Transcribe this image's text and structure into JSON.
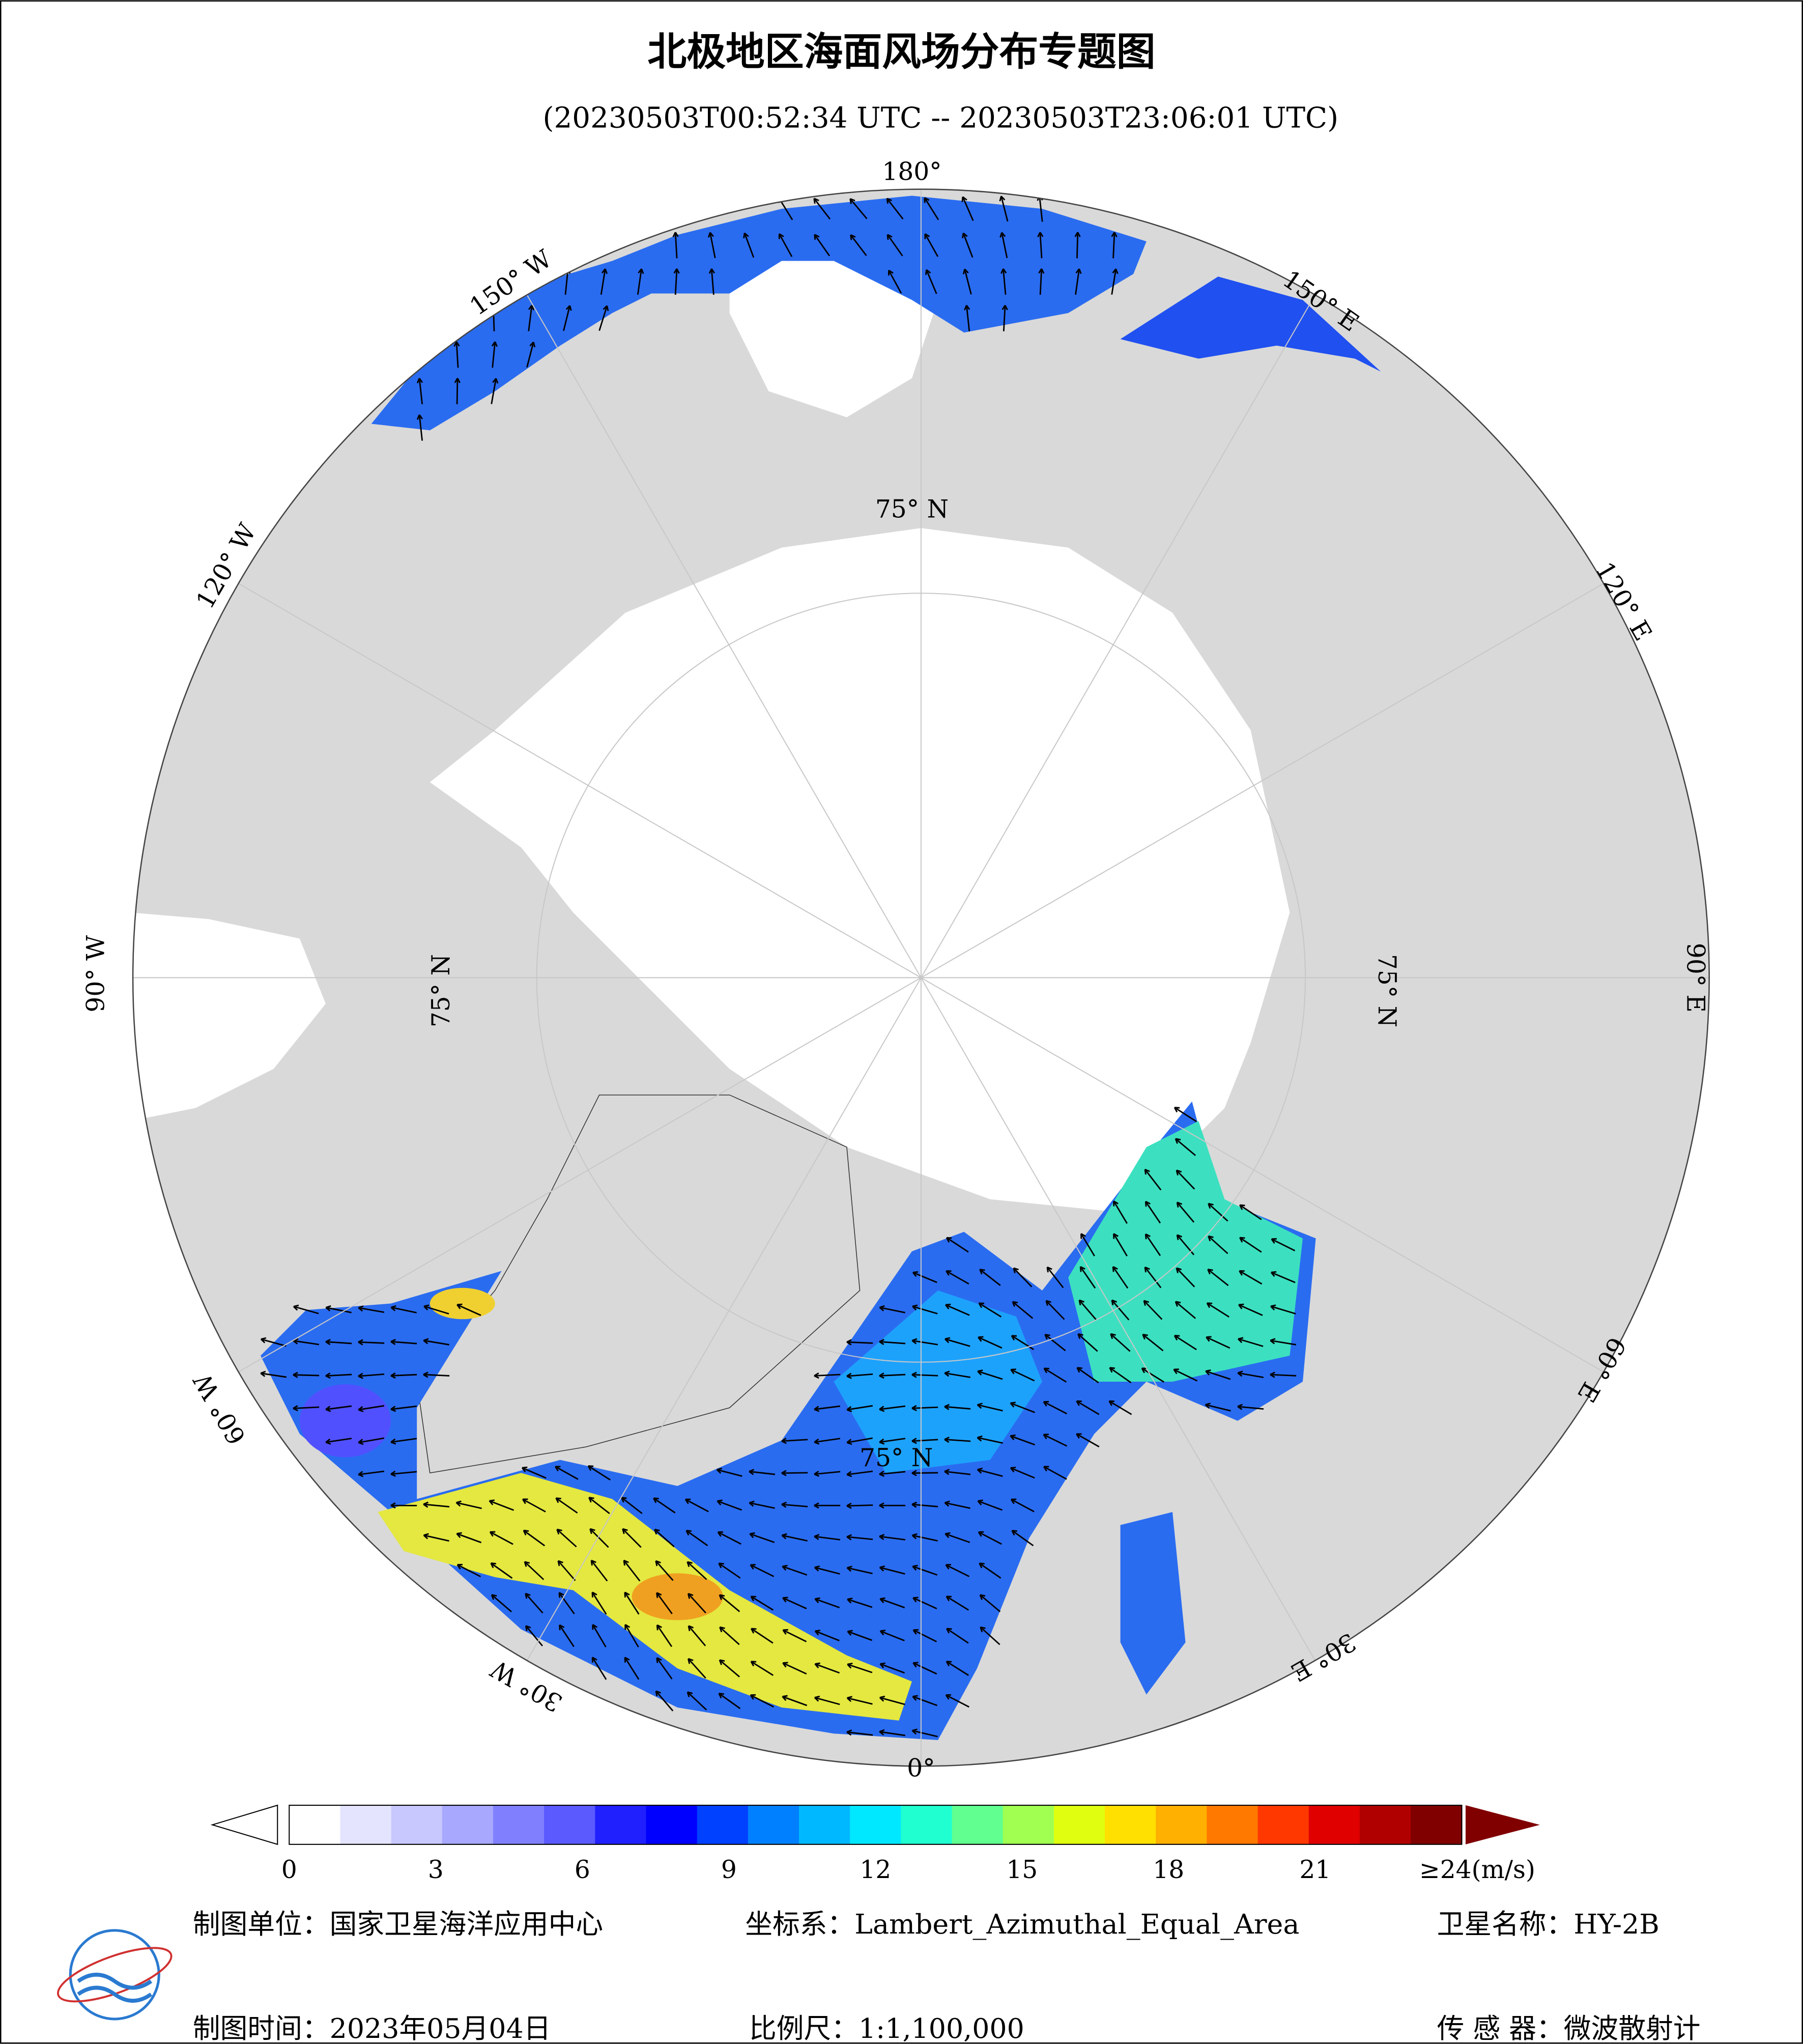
{
  "header": {
    "title": "北极地区海面风场分布专题图",
    "subtitle": "(20230503T00:52:34 UTC -- 20230503T23:06:01 UTC)"
  },
  "map": {
    "lon_labels": [
      "180°",
      "150° W",
      "150° E",
      "120° W",
      "120° E",
      "90° W",
      "90° E",
      "60° W",
      "60° E",
      "30° W",
      "30° E",
      "0°"
    ],
    "lat_labels": [
      "75° N",
      "75° N",
      "75° N",
      "75° N"
    ]
  },
  "colorbar": {
    "range": [
      0,
      24
    ],
    "ticks": [
      0,
      3,
      6,
      9,
      12,
      15,
      18,
      21
    ],
    "max_label": "≥24(m/s)",
    "colors": [
      "#ffffff",
      "#e4e4ff",
      "#c8c8ff",
      "#a8a8ff",
      "#8080ff",
      "#5a5aff",
      "#2020ff",
      "#0000ff",
      "#0040ff",
      "#0080ff",
      "#00b8ff",
      "#00e8ff",
      "#20ffd0",
      "#60ff90",
      "#a0ff50",
      "#e0ff10",
      "#ffe000",
      "#ffb000",
      "#ff7800",
      "#ff3800",
      "#e00000",
      "#b00000",
      "#800000"
    ]
  },
  "footer": {
    "unit": "制图单位：国家卫星海洋应用中心",
    "crs": "坐标系：Lambert_Azimuthal_Equal_Area",
    "satellite": "卫星名称：HY-2B",
    "date": "制图时间：2023年05月04日",
    "scale": "比例尺：1:1,100,000",
    "sensor": "传 感 器：微波散射计"
  }
}
